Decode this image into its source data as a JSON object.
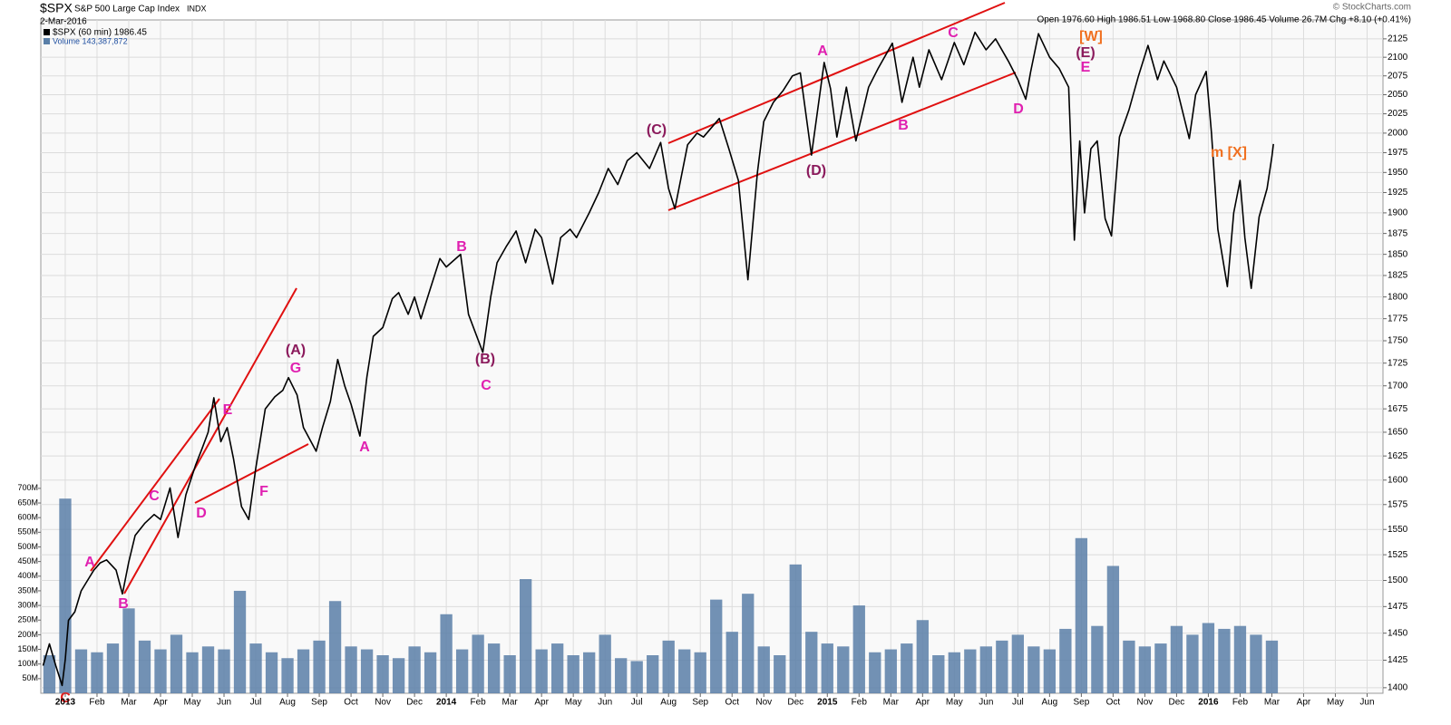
{
  "chart_data": {
    "type": "line",
    "title": "$SPX",
    "subtitle": "S&P 500 Large Cap Index",
    "exchange": "INDX",
    "date": "2-Mar-2016",
    "quote": "Open 1976.60 High 1986.51 Low 1968.80 Close 1986.45 Volume 26.7M Chg +8.10 (+0.41%)",
    "credit": "© StockCharts.com",
    "log_y": true,
    "grid": true,
    "xlim": [
      -0.77,
      41.5
    ],
    "xticks": [
      {
        "value": 0,
        "label": "2013"
      },
      {
        "value": 1,
        "label": "Feb"
      },
      {
        "value": 2,
        "label": "Mar"
      },
      {
        "value": 3,
        "label": "Apr"
      },
      {
        "value": 4,
        "label": "May"
      },
      {
        "value": 5,
        "label": "Jun"
      },
      {
        "value": 6,
        "label": "Jul"
      },
      {
        "value": 7,
        "label": "Aug"
      },
      {
        "value": 8,
        "label": "Sep"
      },
      {
        "value": 9,
        "label": "Oct"
      },
      {
        "value": 10,
        "label": "Nov"
      },
      {
        "value": 11,
        "label": "Dec"
      },
      {
        "value": 12,
        "label": "2014"
      },
      {
        "value": 13,
        "label": "Feb"
      },
      {
        "value": 14,
        "label": "Mar"
      },
      {
        "value": 15,
        "label": "Apr"
      },
      {
        "value": 16,
        "label": "May"
      },
      {
        "value": 17,
        "label": "Jun"
      },
      {
        "value": 18,
        "label": "Jul"
      },
      {
        "value": 19,
        "label": "Aug"
      },
      {
        "value": 20,
        "label": "Sep"
      },
      {
        "value": 21,
        "label": "Oct"
      },
      {
        "value": 22,
        "label": "Nov"
      },
      {
        "value": 23,
        "label": "Dec"
      },
      {
        "value": 24,
        "label": "2015"
      },
      {
        "value": 25,
        "label": "Feb"
      },
      {
        "value": 26,
        "label": "Mar"
      },
      {
        "value": 27,
        "label": "Apr"
      },
      {
        "value": 28,
        "label": "May"
      },
      {
        "value": 29,
        "label": "Jun"
      },
      {
        "value": 30,
        "label": "Jul"
      },
      {
        "value": 31,
        "label": "Aug"
      },
      {
        "value": 32,
        "label": "Sep"
      },
      {
        "value": 33,
        "label": "Oct"
      },
      {
        "value": 34,
        "label": "Nov"
      },
      {
        "value": 35,
        "label": "Dec"
      },
      {
        "value": 36,
        "label": "2016"
      },
      {
        "value": 37,
        "label": "Feb"
      },
      {
        "value": 38,
        "label": "Mar"
      },
      {
        "value": 39,
        "label": "Apr"
      },
      {
        "value": 40,
        "label": "May"
      },
      {
        "value": 41,
        "label": "Jun"
      }
    ],
    "ylim": [
      1395,
      2151
    ],
    "yticks": [
      1400,
      1425,
      1450,
      1475,
      1500,
      1525,
      1550,
      1575,
      1600,
      1625,
      1650,
      1675,
      1700,
      1725,
      1750,
      1775,
      1800,
      1825,
      1850,
      1875,
      1900,
      1925,
      1950,
      1975,
      2000,
      2025,
      2050,
      2075,
      2100,
      2125
    ],
    "y2lim": [
      0,
      2300
    ],
    "y2ticks": [
      {
        "value": 50,
        "label": "50M"
      },
      {
        "value": 100,
        "label": "100M"
      },
      {
        "value": 150,
        "label": "150M"
      },
      {
        "value": 200,
        "label": "200M"
      },
      {
        "value": 250,
        "label": "250M"
      },
      {
        "value": 300,
        "label": "300M"
      },
      {
        "value": 350,
        "label": "350M"
      },
      {
        "value": 400,
        "label": "400M"
      },
      {
        "value": 450,
        "label": "450M"
      },
      {
        "value": 500,
        "label": "500M"
      },
      {
        "value": 550,
        "label": "550M"
      },
      {
        "value": 600,
        "label": "600M"
      },
      {
        "value": 650,
        "label": "650M"
      },
      {
        "value": 700,
        "label": "700M"
      }
    ],
    "series": [
      {
        "name": "$SPX (60 min) 1986.45",
        "color": "#000000",
        "x": [
          -0.7,
          -0.5,
          -0.3,
          -0.1,
          0,
          0.1,
          0.3,
          0.5,
          0.7,
          0.9,
          1.1,
          1.3,
          1.6,
          1.8,
          2,
          2.2,
          2.5,
          2.8,
          3,
          3.3,
          3.55,
          3.8,
          4.1,
          4.3,
          4.5,
          4.68,
          4.9,
          5.1,
          5.3,
          5.55,
          5.78,
          6,
          6.3,
          6.6,
          6.85,
          7.03,
          7.3,
          7.5,
          7.9,
          8.1,
          8.35,
          8.58,
          8.8,
          9,
          9.28,
          9.5,
          9.7,
          10,
          10.3,
          10.5,
          10.8,
          11,
          11.2,
          11.5,
          11.8,
          12,
          12.45,
          12.7,
          13.15,
          13.4,
          13.6,
          13.9,
          14.2,
          14.5,
          14.8,
          15,
          15.35,
          15.6,
          15.9,
          16.1,
          16.5,
          16.8,
          17.1,
          17.4,
          17.7,
          18,
          18.4,
          18.75,
          19,
          19.2,
          19.6,
          19.9,
          20.1,
          20.6,
          20.9,
          21.2,
          21.5,
          21.8,
          22,
          22.3,
          22.6,
          22.9,
          23.15,
          23.5,
          23.9,
          24.1,
          24.3,
          24.6,
          24.9,
          25.3,
          25.6,
          26.05,
          26.35,
          26.7,
          26.9,
          27.2,
          27.6,
          28,
          28.3,
          28.65,
          29,
          29.3,
          29.7,
          30,
          30.25,
          30.4,
          30.65,
          31,
          31.3,
          31.6,
          31.78,
          31.95,
          32.1,
          32.3,
          32.5,
          32.75,
          32.95,
          33.2,
          33.5,
          33.8,
          34.1,
          34.4,
          34.6,
          35,
          35.4,
          35.6,
          35.93,
          36.1,
          36.3,
          36.6,
          36.8,
          37,
          37.15,
          37.35,
          37.6,
          37.85,
          38,
          38.05
        ],
        "values": [
          1420,
          1440,
          1420,
          1402,
          1426,
          1462,
          1470,
          1490,
          1500,
          1510,
          1517,
          1520,
          1510,
          1487,
          1518,
          1544,
          1556,
          1565,
          1560,
          1592,
          1542,
          1585,
          1615,
          1632,
          1650,
          1687,
          1640,
          1655,
          1622,
          1573,
          1560,
          1612,
          1675,
          1688,
          1695,
          1709,
          1690,
          1655,
          1630,
          1655,
          1683,
          1729,
          1700,
          1680,
          1646,
          1710,
          1755,
          1765,
          1798,
          1805,
          1780,
          1800,
          1775,
          1810,
          1845,
          1835,
          1850,
          1780,
          1737,
          1800,
          1840,
          1860,
          1878,
          1840,
          1880,
          1870,
          1815,
          1870,
          1880,
          1870,
          1900,
          1925,
          1955,
          1935,
          1965,
          1975,
          1955,
          1988,
          1930,
          1905,
          1985,
          2000,
          1995,
          2019,
          1980,
          1940,
          1820,
          1950,
          2015,
          2040,
          2055,
          2075,
          2079,
          1972,
          2093,
          2058,
          1995,
          2060,
          1990,
          2060,
          2085,
          2119,
          2040,
          2100,
          2060,
          2110,
          2070,
          2120,
          2090,
          2134,
          2110,
          2125,
          2095,
          2070,
          2044,
          2080,
          2132,
          2100,
          2085,
          2060,
          1867,
          1990,
          1900,
          1980,
          1990,
          1893,
          1872,
          1995,
          2030,
          2075,
          2116,
          2070,
          2095,
          2060,
          1993,
          2050,
          2081,
          2000,
          1880,
          1812,
          1900,
          1940,
          1870,
          1810,
          1895,
          1930,
          1970,
          1986
        ]
      },
      {
        "name": "Volume 143,387,872",
        "color": "#5a7fa8",
        "axis": "y2",
        "type": "bar",
        "x": [
          -0.5,
          0,
          0.5,
          1,
          1.5,
          2,
          2.5,
          3,
          3.5,
          4,
          4.5,
          5,
          5.5,
          6,
          6.5,
          7,
          7.5,
          8,
          8.5,
          9,
          9.5,
          10,
          10.5,
          11,
          11.5,
          12,
          12.5,
          13,
          13.5,
          14,
          14.5,
          15,
          15.5,
          16,
          16.5,
          17,
          17.5,
          18,
          18.5,
          19,
          19.5,
          20,
          20.5,
          21,
          21.5,
          22,
          22.5,
          23,
          23.5,
          24,
          24.5,
          25,
          25.5,
          26,
          26.5,
          27,
          27.5,
          28,
          28.5,
          29,
          29.5,
          30,
          30.5,
          31,
          31.5,
          32,
          32.5,
          33,
          33.5,
          34,
          34.5,
          35,
          35.5,
          36,
          36.5,
          37,
          37.5,
          38
        ],
        "values": [
          130,
          665,
          150,
          140,
          170,
          290,
          180,
          150,
          200,
          140,
          160,
          150,
          350,
          170,
          140,
          120,
          150,
          180,
          315,
          160,
          150,
          130,
          120,
          160,
          140,
          270,
          150,
          200,
          170,
          130,
          390,
          150,
          170,
          130,
          140,
          200,
          120,
          110,
          130,
          180,
          150,
          140,
          320,
          210,
          340,
          160,
          130,
          440,
          210,
          170,
          160,
          300,
          140,
          150,
          170,
          250,
          130,
          140,
          150,
          160,
          180,
          200,
          160,
          150,
          220,
          530,
          230,
          435,
          180,
          160,
          170,
          230,
          200,
          240,
          220,
          230,
          200,
          180
        ]
      }
    ],
    "annotations": [
      {
        "text": "C",
        "color": "#e02020"
      },
      {
        "text": "A",
        "color": "#e020b0"
      },
      {
        "text": "B",
        "color": "#e020b0"
      },
      {
        "text": "C",
        "color": "#e020b0"
      },
      {
        "text": "D",
        "color": "#e020b0"
      },
      {
        "text": "E",
        "color": "#e020b0"
      },
      {
        "text": "F",
        "color": "#e020b0"
      },
      {
        "text": "(A)",
        "color": "#8b1a5c"
      },
      {
        "text": "G",
        "color": "#e020b0"
      },
      {
        "text": "A",
        "color": "#e020b0"
      },
      {
        "text": "B",
        "color": "#e020b0"
      },
      {
        "text": "(B)",
        "color": "#8b1a5c"
      },
      {
        "text": "C",
        "color": "#e020b0"
      },
      {
        "text": "(C)",
        "color": "#8b1a5c"
      },
      {
        "text": "(D)",
        "color": "#8b1a5c"
      },
      {
        "text": "A",
        "color": "#e020b0"
      },
      {
        "text": "B",
        "color": "#e020b0"
      },
      {
        "text": "C",
        "color": "#e020b0"
      },
      {
        "text": "D",
        "color": "#e020b0"
      },
      {
        "text": "[W]",
        "color": "#f07020"
      },
      {
        "text": "(E)",
        "color": "#8b1a5c"
      },
      {
        "text": "E",
        "color": "#e020b0"
      },
      {
        "text": "m [X]",
        "color": "#f07020"
      }
    ]
  }
}
